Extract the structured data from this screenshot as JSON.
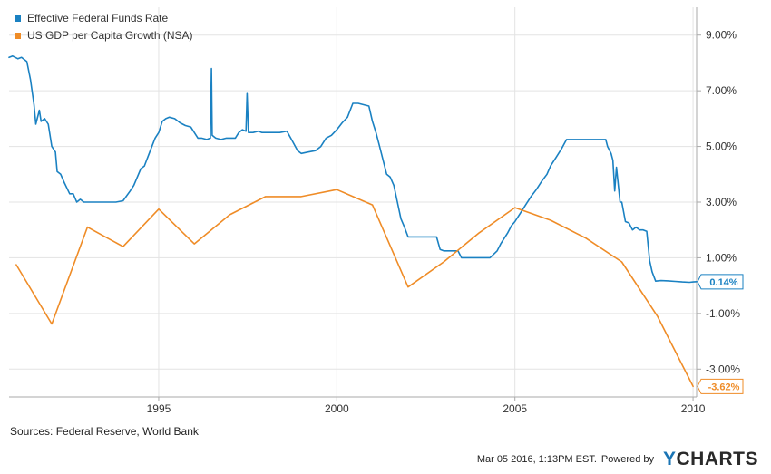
{
  "chart_data": {
    "type": "line",
    "title": "",
    "xlabel": "",
    "ylabel": "",
    "x_range": [
      1990.8,
      2010.1
    ],
    "ylim": [
      -4.0,
      10.0
    ],
    "x_ticks": [
      {
        "value": 1995,
        "label": "1995"
      },
      {
        "value": 2000,
        "label": "2000"
      },
      {
        "value": 2005,
        "label": "2005"
      },
      {
        "value": 2010,
        "label": "2010"
      }
    ],
    "y_ticks": [
      {
        "value": 9,
        "label": "9.00%"
      },
      {
        "value": 7,
        "label": "7.00%"
      },
      {
        "value": 5,
        "label": "5.00%"
      },
      {
        "value": 3,
        "label": "3.00%"
      },
      {
        "value": 1,
        "label": "1.00%"
      },
      {
        "value": -1,
        "label": "-1.00%"
      },
      {
        "value": -3,
        "label": "-3.00%"
      }
    ],
    "grid": true,
    "legend_position": "top-left",
    "series": [
      {
        "name": "Effective Federal Funds Rate",
        "color": "#1a81c2",
        "end_label": "0.14%",
        "end_value": 0.14,
        "points": [
          [
            1990.8,
            8.2
          ],
          [
            1990.9,
            8.25
          ],
          [
            1991.05,
            8.15
          ],
          [
            1991.15,
            8.2
          ],
          [
            1991.3,
            8.05
          ],
          [
            1991.4,
            7.4
          ],
          [
            1991.5,
            6.5
          ],
          [
            1991.55,
            5.8
          ],
          [
            1991.65,
            6.3
          ],
          [
            1991.7,
            5.9
          ],
          [
            1991.8,
            6.0
          ],
          [
            1991.9,
            5.8
          ],
          [
            1992.0,
            5.0
          ],
          [
            1992.1,
            4.8
          ],
          [
            1992.15,
            4.1
          ],
          [
            1992.25,
            4.0
          ],
          [
            1992.35,
            3.7
          ],
          [
            1992.5,
            3.3
          ],
          [
            1992.6,
            3.3
          ],
          [
            1992.7,
            3.0
          ],
          [
            1992.8,
            3.1
          ],
          [
            1992.9,
            3.0
          ],
          [
            1993.0,
            3.0
          ],
          [
            1993.2,
            3.0
          ],
          [
            1993.4,
            3.0
          ],
          [
            1993.6,
            3.0
          ],
          [
            1993.8,
            3.0
          ],
          [
            1994.0,
            3.05
          ],
          [
            1994.2,
            3.4
          ],
          [
            1994.3,
            3.6
          ],
          [
            1994.5,
            4.2
          ],
          [
            1994.6,
            4.3
          ],
          [
            1994.75,
            4.8
          ],
          [
            1994.9,
            5.3
          ],
          [
            1995.0,
            5.5
          ],
          [
            1995.1,
            5.9
          ],
          [
            1995.2,
            6.0
          ],
          [
            1995.3,
            6.05
          ],
          [
            1995.45,
            6.0
          ],
          [
            1995.6,
            5.85
          ],
          [
            1995.75,
            5.75
          ],
          [
            1995.9,
            5.7
          ],
          [
            1996.0,
            5.5
          ],
          [
            1996.1,
            5.3
          ],
          [
            1996.2,
            5.3
          ],
          [
            1996.35,
            5.25
          ],
          [
            1996.45,
            5.3
          ],
          [
            1996.48,
            7.8
          ],
          [
            1996.5,
            5.4
          ],
          [
            1996.6,
            5.3
          ],
          [
            1996.75,
            5.25
          ],
          [
            1996.9,
            5.3
          ],
          [
            1997.0,
            5.3
          ],
          [
            1997.15,
            5.3
          ],
          [
            1997.25,
            5.5
          ],
          [
            1997.35,
            5.6
          ],
          [
            1997.45,
            5.55
          ],
          [
            1997.48,
            6.9
          ],
          [
            1997.52,
            5.5
          ],
          [
            1997.65,
            5.5
          ],
          [
            1997.8,
            5.55
          ],
          [
            1997.9,
            5.5
          ],
          [
            1998.0,
            5.5
          ],
          [
            1998.2,
            5.5
          ],
          [
            1998.4,
            5.5
          ],
          [
            1998.6,
            5.55
          ],
          [
            1998.75,
            5.2
          ],
          [
            1998.9,
            4.85
          ],
          [
            1999.0,
            4.75
          ],
          [
            1999.2,
            4.8
          ],
          [
            1999.4,
            4.85
          ],
          [
            1999.55,
            5.0
          ],
          [
            1999.7,
            5.3
          ],
          [
            1999.85,
            5.4
          ],
          [
            2000.0,
            5.6
          ],
          [
            2000.15,
            5.85
          ],
          [
            2000.3,
            6.05
          ],
          [
            2000.45,
            6.55
          ],
          [
            2000.6,
            6.55
          ],
          [
            2000.75,
            6.5
          ],
          [
            2000.9,
            6.45
          ],
          [
            2001.0,
            5.9
          ],
          [
            2001.1,
            5.5
          ],
          [
            2001.2,
            5.0
          ],
          [
            2001.3,
            4.5
          ],
          [
            2001.4,
            4.0
          ],
          [
            2001.5,
            3.9
          ],
          [
            2001.6,
            3.6
          ],
          [
            2001.7,
            3.0
          ],
          [
            2001.8,
            2.4
          ],
          [
            2001.9,
            2.1
          ],
          [
            2002.0,
            1.75
          ],
          [
            2002.2,
            1.75
          ],
          [
            2002.4,
            1.75
          ],
          [
            2002.6,
            1.75
          ],
          [
            2002.8,
            1.75
          ],
          [
            2002.9,
            1.3
          ],
          [
            2003.0,
            1.25
          ],
          [
            2003.2,
            1.25
          ],
          [
            2003.4,
            1.25
          ],
          [
            2003.5,
            1.0
          ],
          [
            2003.7,
            1.0
          ],
          [
            2003.9,
            1.0
          ],
          [
            2004.1,
            1.0
          ],
          [
            2004.3,
            1.0
          ],
          [
            2004.5,
            1.25
          ],
          [
            2004.6,
            1.5
          ],
          [
            2004.7,
            1.7
          ],
          [
            2004.8,
            1.9
          ],
          [
            2004.9,
            2.15
          ],
          [
            2005.0,
            2.3
          ],
          [
            2005.15,
            2.6
          ],
          [
            2005.3,
            2.9
          ],
          [
            2005.45,
            3.2
          ],
          [
            2005.6,
            3.45
          ],
          [
            2005.75,
            3.75
          ],
          [
            2005.9,
            4.0
          ],
          [
            2006.0,
            4.3
          ],
          [
            2006.15,
            4.6
          ],
          [
            2006.3,
            4.9
          ],
          [
            2006.45,
            5.25
          ],
          [
            2006.6,
            5.25
          ],
          [
            2006.8,
            5.25
          ],
          [
            2007.0,
            5.25
          ],
          [
            2007.2,
            5.25
          ],
          [
            2007.4,
            5.25
          ],
          [
            2007.55,
            5.25
          ],
          [
            2007.6,
            5.0
          ],
          [
            2007.7,
            4.75
          ],
          [
            2007.75,
            4.5
          ],
          [
            2007.8,
            3.4
          ],
          [
            2007.85,
            4.25
          ],
          [
            2007.95,
            3.0
          ],
          [
            2008.0,
            3.0
          ],
          [
            2008.1,
            2.3
          ],
          [
            2008.2,
            2.25
          ],
          [
            2008.3,
            2.0
          ],
          [
            2008.4,
            2.1
          ],
          [
            2008.5,
            2.0
          ],
          [
            2008.6,
            2.0
          ],
          [
            2008.7,
            1.95
          ],
          [
            2008.78,
            0.9
          ],
          [
            2008.85,
            0.5
          ],
          [
            2008.95,
            0.16
          ],
          [
            2009.1,
            0.18
          ],
          [
            2009.3,
            0.17
          ],
          [
            2009.5,
            0.15
          ],
          [
            2009.7,
            0.13
          ],
          [
            2009.9,
            0.12
          ],
          [
            2010.0,
            0.13
          ],
          [
            2010.1,
            0.14
          ]
        ]
      },
      {
        "name": "US GDP per Capita Growth (NSA)",
        "color": "#ef8c27",
        "end_label": "-3.62%",
        "end_value": -3.62,
        "points": [
          [
            1991,
            0.75
          ],
          [
            1992,
            -1.38
          ],
          [
            1993,
            2.1
          ],
          [
            1994,
            1.4
          ],
          [
            1995,
            2.75
          ],
          [
            1996,
            1.5
          ],
          [
            1997,
            2.55
          ],
          [
            1998,
            3.2
          ],
          [
            1999,
            3.2
          ],
          [
            2000,
            3.45
          ],
          [
            2001,
            2.9
          ],
          [
            2002,
            -0.05
          ],
          [
            2003,
            0.85
          ],
          [
            2004,
            1.9
          ],
          [
            2005,
            2.8
          ],
          [
            2006,
            2.35
          ],
          [
            2007,
            1.7
          ],
          [
            2008,
            0.85
          ],
          [
            2009,
            -1.1
          ],
          [
            2010,
            -3.62
          ]
        ]
      }
    ]
  },
  "sources": "Sources: Federal Reserve, World Bank",
  "footer": {
    "timestamp": "Mar 05 2016, 1:13PM EST.",
    "powered_by": "Powered by",
    "logo_y": "Y",
    "logo_rest": "CHARTS"
  }
}
